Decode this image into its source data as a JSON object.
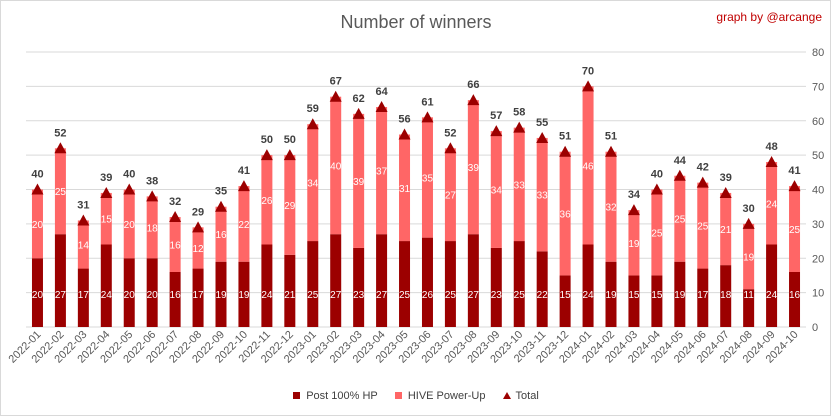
{
  "chart_data": {
    "type": "bar",
    "title": "Number of winners",
    "credit": "graph by @arcange",
    "categories": [
      "2022-01",
      "2022-02",
      "2022-03",
      "2022-04",
      "2022-05",
      "2022-06",
      "2022-07",
      "2022-08",
      "2022-09",
      "2022-10",
      "2022-11",
      "2022-12",
      "2023-01",
      "2023-02",
      "2023-03",
      "2023-04",
      "2023-05",
      "2023-06",
      "2023-07",
      "2023-08",
      "2023-09",
      "2023-10",
      "2023-11",
      "2023-12",
      "2024-01",
      "2024-02",
      "2024-03",
      "2024-04",
      "2024-05",
      "2024-06",
      "2024-07",
      "2024-08",
      "2024-09",
      "2024-10"
    ],
    "series": [
      {
        "name": "Post 100% HP",
        "color": "#9c0000",
        "values": [
          20,
          27,
          17,
          24,
          20,
          20,
          16,
          17,
          19,
          19,
          24,
          21,
          25,
          27,
          23,
          27,
          25,
          26,
          25,
          27,
          23,
          25,
          22,
          15,
          24,
          19,
          15,
          15,
          19,
          17,
          18,
          11,
          24,
          16
        ]
      },
      {
        "name": "HIVE Power-Up",
        "color": "#ff6666",
        "values": [
          20,
          25,
          14,
          15,
          20,
          18,
          16,
          12,
          16,
          22,
          26,
          29,
          34,
          40,
          39,
          37,
          31,
          35,
          27,
          39,
          34,
          33,
          33,
          36,
          46,
          32,
          19,
          25,
          25,
          25,
          21,
          19,
          24,
          25
        ]
      },
      {
        "name": "Total",
        "color": "#9c0000",
        "values": [
          40,
          52,
          31,
          39,
          40,
          38,
          32,
          29,
          35,
          41,
          50,
          50,
          59,
          67,
          62,
          64,
          56,
          61,
          52,
          66,
          57,
          58,
          55,
          51,
          70,
          51,
          34,
          40,
          44,
          42,
          39,
          30,
          48,
          41
        ]
      }
    ],
    "stacked": true,
    "ylim": [
      0,
      80
    ],
    "yticks": [
      0,
      10,
      20,
      30,
      40,
      50,
      60,
      70,
      80
    ],
    "y_axis_side": "right",
    "grid": true,
    "legend": "bottom"
  }
}
